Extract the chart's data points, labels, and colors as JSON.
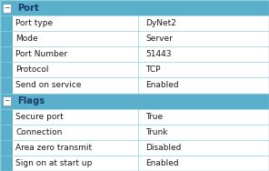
{
  "sections": [
    {
      "header": "Port",
      "rows": [
        {
          "label": "Port type",
          "value": "DyNet2"
        },
        {
          "label": "Mode",
          "value": "Server"
        },
        {
          "label": "Port Number",
          "value": "51443"
        },
        {
          "label": "Protocol",
          "value": "TCP"
        },
        {
          "label": "Send on service",
          "value": "Enabled"
        }
      ]
    },
    {
      "header": "Flags",
      "rows": [
        {
          "label": "Secure port",
          "value": "True"
        },
        {
          "label": "Connection",
          "value": "Trunk"
        },
        {
          "label": "Area zero transmit",
          "value": "Disabled"
        },
        {
          "label": "Sign on at start up",
          "value": "Enabled"
        }
      ]
    }
  ],
  "header_bg": "#5aafca",
  "row_bg": "#ffffff",
  "header_text": "#1a3a6b",
  "row_text": "#1a1a1a",
  "border_color": "#8dd0e0",
  "left_bar_color": "#5aafca",
  "fig_bg": "#5aafca",
  "font_size": 6.5,
  "header_font_size": 7.2
}
